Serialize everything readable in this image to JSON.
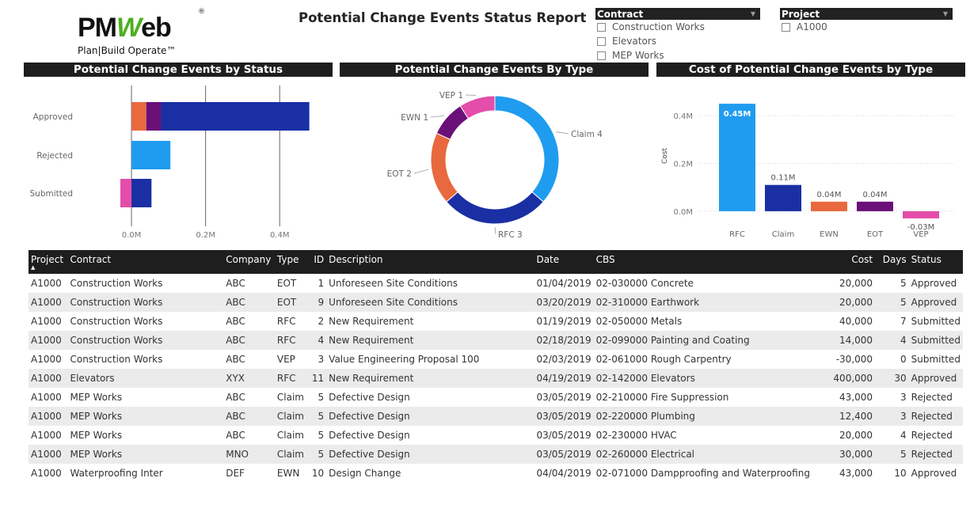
{
  "logo": {
    "brand_pm": "PM",
    "brand_w": "W",
    "brand_eb": "eb",
    "registered": "®",
    "tagline": "Plan|Build Operate™"
  },
  "title": "Potential Change Events Status Report",
  "slicers": {
    "contract": {
      "label": "Contract",
      "items": [
        "Construction Works",
        "Elevators",
        "MEP Works"
      ]
    },
    "project": {
      "label": "Project",
      "items": [
        "A1000"
      ]
    }
  },
  "sections": {
    "by_status": "Potential Change Events by Status",
    "by_type": "Potential Change Events By Type",
    "cost_by_type": "Cost of Potential Change Events by Type"
  },
  "chart_data": [
    {
      "type": "bar",
      "orientation": "horizontal",
      "stacked": true,
      "categories": [
        "Approved",
        "Rejected",
        "Submitted"
      ],
      "series": [
        {
          "color": "#e8693e",
          "values": [
            0.04,
            0,
            0
          ]
        },
        {
          "color": "#6b0f79",
          "values": [
            0.04,
            0,
            0
          ]
        },
        {
          "color": "#1a2fa3",
          "values": [
            0.4,
            0,
            0.054
          ]
        },
        {
          "color": "#1f9cf0",
          "values": [
            0,
            0.105,
            0
          ]
        },
        {
          "color": "#e44da9",
          "values": [
            0,
            0,
            -0.03
          ]
        }
      ],
      "xticks": [
        "0.0M",
        "0.2M",
        "0.4M"
      ],
      "xlim": [
        -0.03,
        0.5
      ],
      "grid": true
    },
    {
      "type": "pie",
      "donut": true,
      "slices": [
        {
          "label": "Claim 4",
          "value": 4,
          "color": "#1f9cf0"
        },
        {
          "label": "RFC 3",
          "value": 3,
          "color": "#1a2fa3"
        },
        {
          "label": "EOT 2",
          "value": 2,
          "color": "#e8693e"
        },
        {
          "label": "EWN 1",
          "value": 1,
          "color": "#6b0f79"
        },
        {
          "label": "VEP 1",
          "value": 1,
          "color": "#e44da9"
        }
      ]
    },
    {
      "type": "bar",
      "categories": [
        "RFC",
        "Claim",
        "EWN",
        "EOT",
        "VEP"
      ],
      "values": [
        0.45,
        0.11,
        0.04,
        0.04,
        -0.03
      ],
      "value_labels": [
        "0.45M",
        "0.11M",
        "0.04M",
        "0.04M",
        "-0.03M"
      ],
      "colors": [
        "#1f9cf0",
        "#1a2fa3",
        "#e8693e",
        "#6b0f79",
        "#e44da9"
      ],
      "ylabel": "Cost",
      "yticks": [
        "0.0M",
        "0.2M",
        "0.4M"
      ],
      "ylim": [
        -0.05,
        0.5
      ],
      "grid": true
    }
  ],
  "table": {
    "columns": [
      "Project",
      "Contract",
      "Company",
      "Type",
      "ID",
      "Description",
      "Date",
      "CBS",
      "Cost",
      "Days",
      "Status"
    ],
    "rows": [
      [
        "A1000",
        "Construction Works",
        "ABC",
        "EOT",
        "1",
        "Unforeseen Site Conditions",
        "01/04/2019",
        "02-030000 Concrete",
        "20,000",
        "5",
        "Approved"
      ],
      [
        "A1000",
        "Construction Works",
        "ABC",
        "EOT",
        "9",
        "Unforeseen Site Conditions",
        "03/20/2019",
        "02-310000 Earthwork",
        "20,000",
        "5",
        "Approved"
      ],
      [
        "A1000",
        "Construction Works",
        "ABC",
        "RFC",
        "2",
        "New Requirement",
        "01/19/2019",
        "02-050000 Metals",
        "40,000",
        "7",
        "Submitted"
      ],
      [
        "A1000",
        "Construction Works",
        "ABC",
        "RFC",
        "4",
        "New Requirement",
        "02/18/2019",
        "02-099000 Painting and Coating",
        "14,000",
        "4",
        "Submitted"
      ],
      [
        "A1000",
        "Construction Works",
        "ABC",
        "VEP",
        "3",
        "Value Engineering Proposal 100",
        "02/03/2019",
        "02-061000 Rough Carpentry",
        "-30,000",
        "0",
        "Submitted"
      ],
      [
        "A1000",
        "Elevators",
        "XYX",
        "RFC",
        "11",
        "New Requirement",
        "04/19/2019",
        "02-142000 Elevators",
        "400,000",
        "30",
        "Approved"
      ],
      [
        "A1000",
        "MEP Works",
        "ABC",
        "Claim",
        "5",
        "Defective Design",
        "03/05/2019",
        "02-210000 Fire Suppression",
        "43,000",
        "3",
        "Rejected"
      ],
      [
        "A1000",
        "MEP Works",
        "ABC",
        "Claim",
        "5",
        "Defective Design",
        "03/05/2019",
        "02-220000 Plumbing",
        "12,400",
        "3",
        "Rejected"
      ],
      [
        "A1000",
        "MEP Works",
        "ABC",
        "Claim",
        "5",
        "Defective Design",
        "03/05/2019",
        "02-230000 HVAC",
        "20,000",
        "4",
        "Rejected"
      ],
      [
        "A1000",
        "MEP Works",
        "MNO",
        "Claim",
        "5",
        "Defective Design",
        "03/05/2019",
        "02-260000 Electrical",
        "30,000",
        "5",
        "Rejected"
      ],
      [
        "A1000",
        "Waterproofing Inter",
        "DEF",
        "EWN",
        "10",
        "Design Change",
        "04/04/2019",
        "02-071000 Dampproofing and Waterproofing",
        "43,000",
        "10",
        "Approved"
      ]
    ]
  }
}
